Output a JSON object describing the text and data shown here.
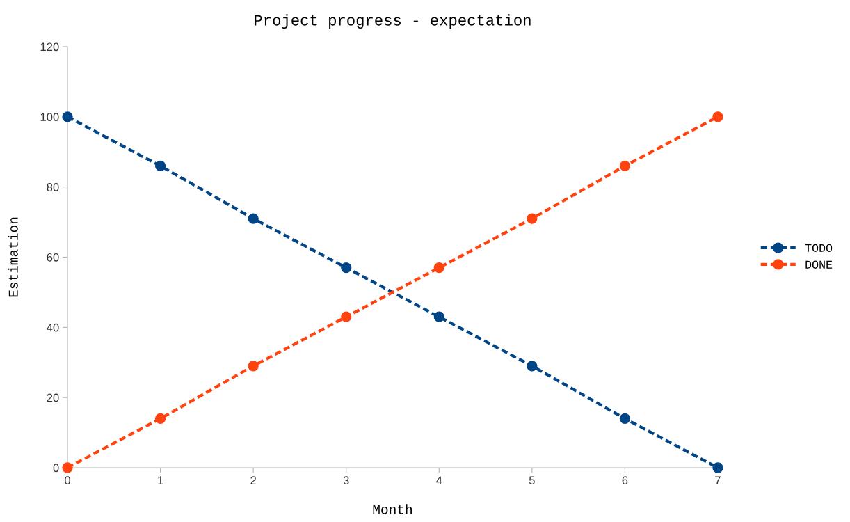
{
  "chart_data": {
    "type": "line",
    "title": "Project progress - expectation",
    "xlabel": "Month",
    "ylabel": "Estimation",
    "x": [
      0,
      1,
      2,
      3,
      4,
      5,
      6,
      7
    ],
    "series": [
      {
        "name": "TODO",
        "color": "#004586",
        "values": [
          100,
          86,
          71,
          57,
          43,
          29,
          14,
          0
        ]
      },
      {
        "name": "DONE",
        "color": "#ff420e",
        "values": [
          0,
          14,
          29,
          43,
          57,
          71,
          86,
          100
        ]
      }
    ],
    "xlim": [
      0,
      7
    ],
    "xticks": [
      0,
      1,
      2,
      3,
      4,
      5,
      6,
      7
    ],
    "ylim": [
      0,
      120
    ],
    "yticks": [
      0,
      20,
      40,
      60,
      80,
      100,
      120
    ],
    "grid": false,
    "legend": "right",
    "marker": "circle",
    "line_style": "dashed"
  }
}
